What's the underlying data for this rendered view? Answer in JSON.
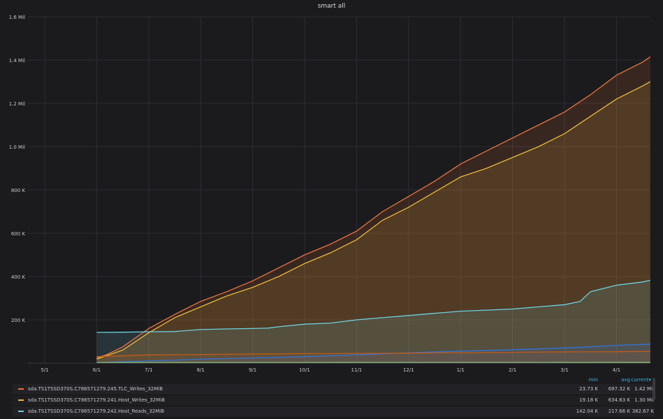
{
  "panel": {
    "title": "smart all"
  },
  "legend": {
    "headers": {
      "min": "min",
      "avg": "avg",
      "current": "current▾"
    },
    "rows": [
      {
        "name": "sda.TS1TSSD370S.C786571279.245.TLC_Writes_32MiB",
        "color": "#e8743b",
        "min": "23.73 K",
        "avg": "697.32 K",
        "current": "1.42 Mil"
      },
      {
        "name": "sda.TS1TSSD370S.C786571279.241.Host_Writes_32MiB",
        "color": "#eab839",
        "min": "19.18 K",
        "avg": "634.63 K",
        "current": "1.30 Mil"
      },
      {
        "name": "sda.TS1TSSD370S.C786571279.242.Host_Reads_32MiB",
        "color": "#6ed0e0",
        "min": "142.04 K",
        "avg": "217.66 K",
        "current": "382.67 K"
      }
    ]
  },
  "chart_data": {
    "type": "area",
    "title": "smart all",
    "x_ticks": [
      "5/1",
      "6/1",
      "7/1",
      "8/1",
      "9/1",
      "10/1",
      "11/1",
      "12/1",
      "1/1",
      "2/1",
      "3/1",
      "4/1"
    ],
    "y_ticks": [
      "200 K",
      "400 K",
      "600 K",
      "800 K",
      "1.0 Mil",
      "1.2 Mil",
      "1.4 Mil",
      "1.6 Mil"
    ],
    "ylim": [
      0,
      1600000
    ],
    "grid": true,
    "series": [
      {
        "name": "sda.TS1TSSD370S.C786571279.245.TLC_Writes_32MiB",
        "color": "#e8743b",
        "x": [
          1,
          1.2,
          1.5,
          2,
          2.5,
          3,
          3.5,
          4,
          4.5,
          5,
          5.5,
          6,
          6.5,
          7,
          7.5,
          8,
          8.5,
          9,
          9.5,
          10,
          10.5,
          11,
          11.5,
          11.65
        ],
        "y": [
          24000,
          40000,
          75000,
          160000,
          225000,
          285000,
          330000,
          380000,
          440000,
          500000,
          550000,
          610000,
          700000,
          770000,
          840000,
          920000,
          980000,
          1040000,
          1100000,
          1160000,
          1240000,
          1330000,
          1390000,
          1415000
        ]
      },
      {
        "name": "sda.TS1TSSD370S.C786571279.241.Host_Writes_32MiB",
        "color": "#eab839",
        "x": [
          1,
          1.2,
          1.5,
          2,
          2.5,
          3,
          3.5,
          4,
          4.5,
          5,
          5.5,
          6,
          6.5,
          7,
          7.5,
          8,
          8.5,
          9,
          9.5,
          10,
          10.5,
          11,
          11.5,
          11.65
        ],
        "y": [
          19000,
          35000,
          60000,
          140000,
          210000,
          260000,
          310000,
          350000,
          400000,
          460000,
          510000,
          570000,
          660000,
          720000,
          790000,
          860000,
          900000,
          950000,
          1000000,
          1060000,
          1140000,
          1220000,
          1280000,
          1300000
        ]
      },
      {
        "name": "sda.TS1TSSD370S.C786571279.242.Host_Reads_32MiB",
        "color": "#6ed0e0",
        "x": [
          1,
          1.5,
          2,
          2.5,
          3,
          3.5,
          4,
          4.3,
          4.5,
          5,
          5.5,
          6,
          6.5,
          7,
          7.5,
          8,
          8.5,
          9,
          9.5,
          10,
          10.3,
          10.5,
          11,
          11.5,
          11.65
        ],
        "y": [
          142000,
          143000,
          145000,
          146000,
          155000,
          158000,
          160000,
          162000,
          168000,
          180000,
          185000,
          200000,
          210000,
          220000,
          230000,
          240000,
          245000,
          250000,
          260000,
          270000,
          285000,
          330000,
          360000,
          375000,
          382670
        ]
      },
      {
        "name": "",
        "color": "#3274d9",
        "x": [
          1,
          2,
          3,
          4,
          5,
          6,
          7,
          8,
          9,
          10,
          11,
          11.65
        ],
        "y": [
          3000,
          10000,
          18000,
          24000,
          30000,
          38000,
          48000,
          55000,
          62000,
          70000,
          82000,
          88000
        ]
      },
      {
        "name": "",
        "color": "#c15c17",
        "x": [
          1,
          2,
          3,
          4,
          5,
          6,
          7,
          8,
          9,
          10,
          11,
          11.65
        ],
        "y": [
          30000,
          38000,
          40000,
          42000,
          44000,
          45000,
          46000,
          48000,
          50000,
          52000,
          53000,
          54000
        ]
      },
      {
        "name": "",
        "color": "#7eb26d",
        "x": [
          1,
          11.65
        ],
        "y": [
          3000,
          4000
        ]
      }
    ]
  }
}
